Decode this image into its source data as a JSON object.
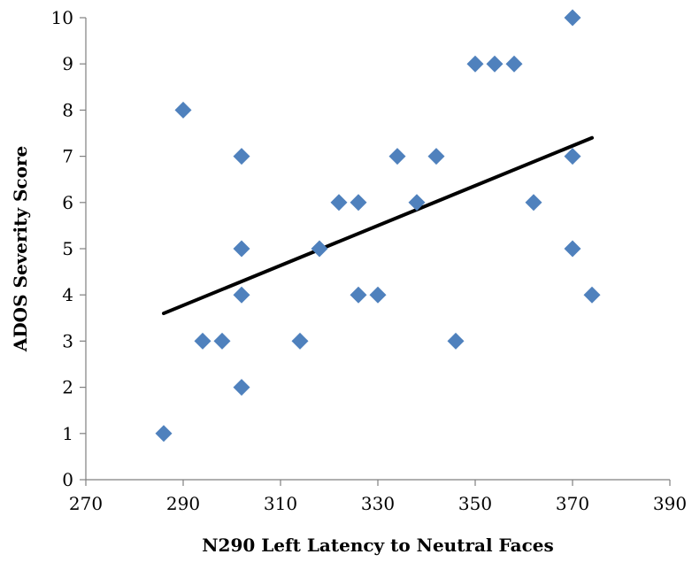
{
  "chart_data": {
    "type": "scatter",
    "title": "",
    "xlabel": "N290 Left Latency to Neutral Faces",
    "ylabel": "ADOS Severity Score",
    "xlim": [
      270,
      390
    ],
    "ylim": [
      0,
      10
    ],
    "x_ticks": [
      270,
      290,
      310,
      330,
      350,
      370,
      390
    ],
    "y_ticks": [
      0,
      1,
      2,
      3,
      4,
      5,
      6,
      7,
      8,
      9,
      10
    ],
    "grid": false,
    "legend": "none",
    "marker_color": "#4F81BD",
    "trend_color": "#000000",
    "series": [
      {
        "points": [
          [
            286,
            1
          ],
          [
            290,
            8
          ],
          [
            294,
            3
          ],
          [
            298,
            3
          ],
          [
            302,
            7
          ],
          [
            302,
            5
          ],
          [
            302,
            4
          ],
          [
            302,
            2
          ],
          [
            314,
            3
          ],
          [
            318,
            5
          ],
          [
            322,
            6
          ],
          [
            326,
            6
          ],
          [
            326,
            4
          ],
          [
            330,
            4
          ],
          [
            334,
            7
          ],
          [
            338,
            6
          ],
          [
            342,
            7
          ],
          [
            346,
            3
          ],
          [
            350,
            9
          ],
          [
            354,
            9
          ],
          [
            358,
            9
          ],
          [
            362,
            6
          ],
          [
            370,
            10
          ],
          [
            370,
            7
          ],
          [
            370,
            5
          ],
          [
            374,
            4
          ]
        ]
      }
    ],
    "trendline": {
      "x": [
        286,
        374
      ],
      "y": [
        3.6,
        7.4
      ]
    }
  }
}
